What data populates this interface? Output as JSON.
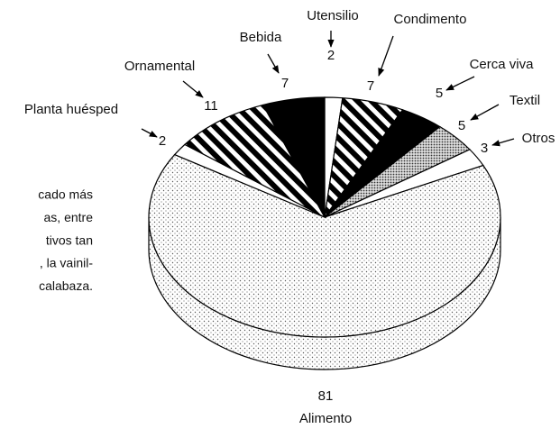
{
  "chart_data": {
    "type": "pie3d",
    "categories": [
      "Utensilio",
      "Condimento",
      "Cerca viva",
      "Textil",
      "Otros",
      "Alimento",
      "Planta huésped",
      "Ornamental",
      "Bebida"
    ],
    "values": [
      2,
      7,
      5,
      5,
      3,
      81,
      2,
      11,
      7
    ],
    "patterns": [
      "white",
      "stripes",
      "black",
      "dots-dense",
      "white",
      "dots",
      "white",
      "stripes",
      "black"
    ]
  },
  "side_text": [
    "cado más",
    "as, entre",
    "tivos tan",
    ", la vainil-",
    "calabaza."
  ]
}
